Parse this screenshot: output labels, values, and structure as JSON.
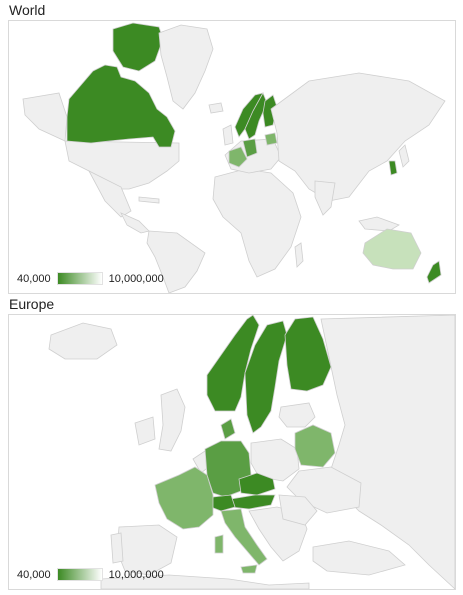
{
  "maps": [
    {
      "title": "World",
      "legend": {
        "min_label": "40,000",
        "max_label": "10,000,000",
        "min_color": "#3c8a23",
        "max_color": "#ffffff"
      },
      "highlighted_regions": [
        "Canada",
        "Greenland",
        "Norway",
        "Sweden",
        "Finland",
        "Denmark",
        "Germany",
        "Austria",
        "Switzerland",
        "France",
        "Italy",
        "Belarus",
        "Czech Republic",
        "South Korea",
        "Australia",
        "New Zealand"
      ]
    },
    {
      "title": "Europe",
      "legend": {
        "min_label": "40,000",
        "max_label": "10,000,000",
        "min_color": "#3c8a23",
        "max_color": "#ffffff"
      },
      "highlighted_regions": [
        "Norway",
        "Sweden",
        "Finland",
        "Denmark",
        "Germany",
        "Czech Republic",
        "Austria",
        "Switzerland",
        "France",
        "Italy",
        "Belarus"
      ]
    }
  ],
  "colors": {
    "base_land": "#efefef",
    "border": "#cfcfcf",
    "dark": "#3c8a23",
    "mid": "#5a9e44",
    "light": "#7fb66b",
    "pale": "#a9cf98",
    "palest": "#c7e1bb",
    "highlight": "#ffffff"
  }
}
